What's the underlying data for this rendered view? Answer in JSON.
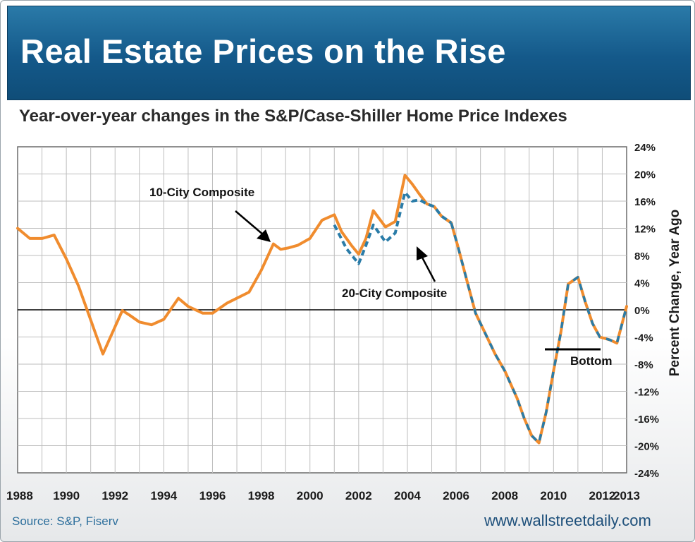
{
  "header": {
    "title": "Real Estate Prices on the Rise",
    "subtitle": "Year-over-year changes in the S&P/Case-Shiller Home Price Indexes"
  },
  "footer": {
    "source": "Source: S&P, Fiserv",
    "website": "www.wallstreetdaily.com"
  },
  "colors": {
    "banner": "#1b6a9a",
    "ten_city": "#f08c2e",
    "twenty_city": "#2a7ca8",
    "zero_line": "#000000"
  },
  "chart_data": {
    "type": "line",
    "title": "",
    "xlabel": "",
    "ylabel": "Percent Change, Year Ago",
    "xlim": [
      1988,
      2013
    ],
    "ylim": [
      -24,
      24
    ],
    "x_ticks": [
      "1988",
      "1990",
      "1992",
      "1994",
      "1996",
      "1998",
      "2000",
      "2002",
      "2004",
      "2006",
      "2008",
      "2010",
      "2012",
      "2013"
    ],
    "y_ticks": [
      "24%",
      "20%",
      "16%",
      "12%",
      "8%",
      "4%",
      "0%",
      "-4%",
      "-8%",
      "-12%",
      "-16%",
      "-20%",
      "-24%"
    ],
    "grid": true,
    "series": [
      {
        "name": "10-City Composite",
        "x": [
          1988,
          1988.5,
          1989,
          1989.5,
          1990,
          1990.5,
          1991,
          1991.25,
          1991.5,
          1992,
          1992.3,
          1992.6,
          1993,
          1993.5,
          1994,
          1994.6,
          1995,
          1995.6,
          1996,
          1996.6,
          1997,
          1997.5,
          1998,
          1998.5,
          1998.8,
          1999.1,
          1999.5,
          2000,
          2000.5,
          2001,
          2001.3,
          2001.7,
          2002,
          2002.3,
          2002.6,
          2003.1,
          2003.5,
          2003.9,
          2004.2,
          2004.5,
          2004.8,
          2005.1,
          2005.4,
          2005.8,
          2006.1,
          2006.5,
          2006.8,
          2007.2,
          2007.6,
          2008,
          2008.5,
          2008.8,
          2009.1,
          2009.4,
          2009.7,
          2010,
          2010.3,
          2010.6,
          2011,
          2011.3,
          2011.6,
          2011.9,
          2012.3,
          2012.6,
          2013
        ],
        "y": [
          12,
          10.5,
          10.5,
          11,
          7.5,
          3.5,
          -1.5,
          -4,
          -6.5,
          -2.5,
          -0.1,
          -0.8,
          -1.8,
          -2.2,
          -1.4,
          1.7,
          0.5,
          -0.5,
          -0.5,
          1,
          1.7,
          2.6,
          5.8,
          9.7,
          8.9,
          9.1,
          9.5,
          10.5,
          13.2,
          14,
          11.5,
          9.5,
          8.2,
          10.5,
          14.6,
          12.2,
          13,
          19.8,
          18.5,
          17,
          15.6,
          15.2,
          13.8,
          12.8,
          9,
          3.5,
          -0.5,
          -3.5,
          -6.5,
          -9,
          -13,
          -16,
          -18.5,
          -19.6,
          -15,
          -9,
          -3.3,
          3.8,
          4.8,
          1.2,
          -2,
          -4,
          -4.4,
          -4.9,
          0.5
        ]
      },
      {
        "name": "20-City Composite",
        "x": [
          2001,
          2001.5,
          2002,
          2002.3,
          2002.6,
          2003.1,
          2003.5,
          2003.9,
          2004.2,
          2004.5,
          2004.8,
          2005.1,
          2005.4,
          2005.8
        ],
        "y": [
          12.5,
          9,
          6.8,
          9.5,
          12.5,
          10,
          11.3,
          17.3,
          16,
          16.2,
          15.6,
          15.2,
          13.8,
          12.8
        ]
      }
    ],
    "annotations": [
      {
        "text": "10-City Composite"
      },
      {
        "text": "20-City Composite"
      },
      {
        "text": "Bottom"
      }
    ]
  }
}
